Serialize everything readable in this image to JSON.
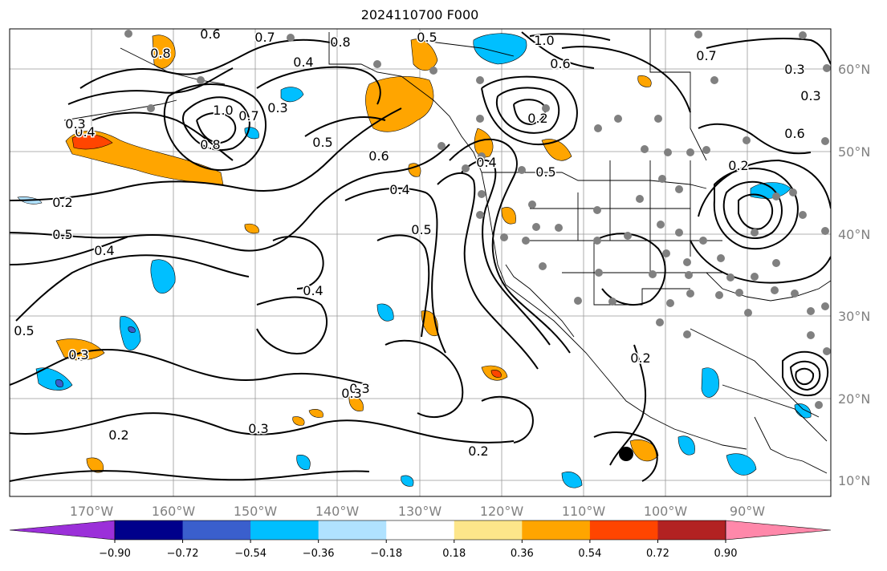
{
  "title": "2024110700 F000",
  "map": {
    "lat_labels": [
      "60°N",
      "50°N",
      "40°N",
      "30°N",
      "20°N",
      "10°N"
    ],
    "lon_labels": [
      "170°W",
      "160°W",
      "150°W",
      "140°W",
      "130°W",
      "120°W",
      "110°W",
      "100°W",
      "90°W"
    ],
    "contour_labels": [
      "0.2",
      "0.5",
      "0.4",
      "0.5",
      "0.3",
      "0.2",
      "0.3",
      "0.3",
      "0.2",
      "0.4",
      "0.5",
      "0.4",
      "0.7",
      "0.6",
      "0.4",
      "0.8",
      "0.5",
      "1.0",
      "0.8",
      "0.7",
      "0.8",
      "0.3",
      "1.0",
      "0.7",
      "0.6",
      "0.3",
      "0.3",
      "0.2",
      "0.6",
      "0.5",
      "0.6",
      "0.4",
      "0.5",
      "0.4",
      "0.3",
      "0.2",
      "0.2",
      "0.3"
    ]
  },
  "colorbar": {
    "ticks": [
      "−0.90",
      "−0.72",
      "−0.54",
      "−0.36",
      "−0.18",
      "0.18",
      "0.36",
      "0.54",
      "0.72",
      "0.90"
    ],
    "colors": [
      "#9b30d9",
      "#00008b",
      "#3a5fcd",
      "#00bfff",
      "#b0e2ff",
      "#ffffff",
      "#fde68a",
      "#ffa500",
      "#ff4500",
      "#b22222",
      "#ff88aa"
    ]
  },
  "colors": {
    "positive_fill": "#ffa500",
    "strong_positive_fill": "#ff4500",
    "negative_fill": "#00bfff",
    "strong_negative_fill": "#3a5fcd",
    "station_dot": "#808080",
    "grid": "#999999"
  }
}
